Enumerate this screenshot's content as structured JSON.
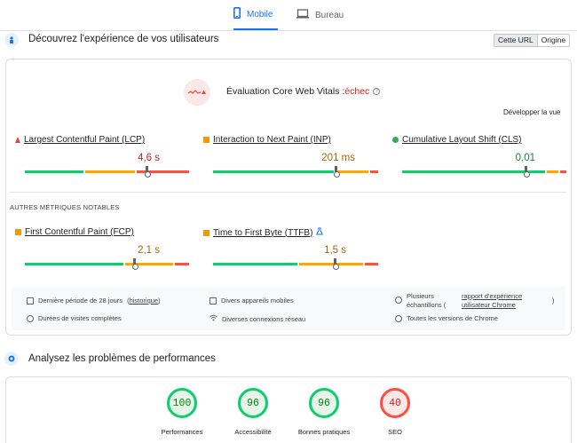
{
  "tabs": [
    {
      "label": "Mobile",
      "icon": "smartphone-icon",
      "active": true
    },
    {
      "label": "Bureau",
      "icon": "desktop-icon",
      "active": false
    }
  ],
  "ux_section": {
    "title": "Découvrez l'expérience de vos utilisateurs",
    "toggle": [
      "Cette URL",
      "Origine"
    ]
  },
  "cwv": {
    "title_prefix": "Évaluation Core Web Vitals :",
    "status": "échec",
    "expand_label": "Développer la vue",
    "metrics": [
      {
        "label": "Largest Contentful Paint (LCP)",
        "value": "4,6 s",
        "status": "poor",
        "color": "#c5221f"
      },
      {
        "label": "Interaction to Next Paint (INP)",
        "value": "201 ms",
        "status": "needs-improvement",
        "color": "#b06000"
      },
      {
        "label": "Cumulative Layout Shift (CLS)",
        "value": "0,01",
        "status": "good",
        "color": "#188038"
      }
    ]
  },
  "other_metrics": {
    "title": "AUTRES MÉTRIQUES NOTABLES",
    "metrics": [
      {
        "label": "First Contentful Paint (FCP)",
        "value": "2,1 s",
        "status": "needs-improvement",
        "color": "#b06000"
      },
      {
        "label": "Time to First Byte (TTFB)",
        "value": "1,5 s",
        "status": "needs-improvement",
        "color": "#b06000",
        "flag": "flask-icon"
      }
    ]
  },
  "info": {
    "period": "Dernière période de 28 jours",
    "history_link": "historique",
    "devices": "Divers appareils mobiles",
    "samples_prefix": "Plusieurs échantillons (",
    "samples_link": "rapport d'expérience utilisateur Chrome",
    "samples_suffix": ")",
    "durations": "Durées de visites complètes",
    "network": "Diverses connexions réseau",
    "chrome": "Toutes les versions de Chrome"
  },
  "perf_section": {
    "title": "Analysez les problèmes de performances",
    "scores": [
      {
        "label": "Performances",
        "value": "100",
        "status": "good"
      },
      {
        "label": "Accessibilité",
        "value": "96",
        "status": "good"
      },
      {
        "label": "Bonnes pratiques",
        "value": "96",
        "status": "good"
      },
      {
        "label": "SEO",
        "value": "40",
        "status": "bad"
      }
    ]
  },
  "colors": {
    "accent": "#1a73e8",
    "good": "#0cce6b",
    "average": "#ffa400",
    "poor": "#ff4e42"
  }
}
